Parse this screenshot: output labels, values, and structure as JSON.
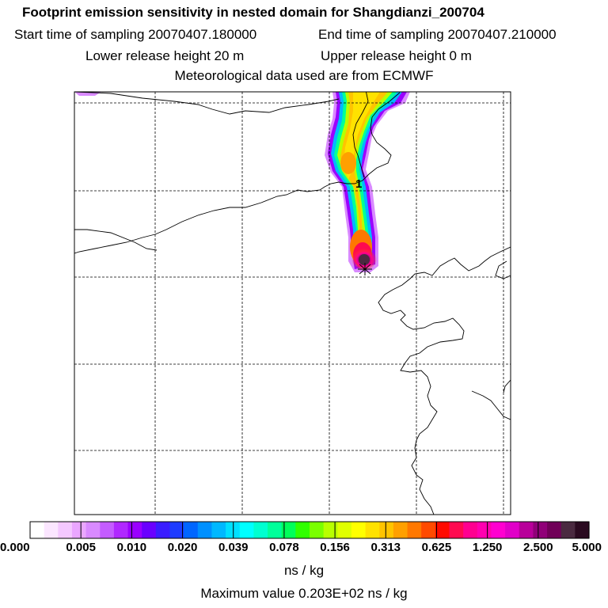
{
  "header": {
    "title": "Footprint emission sensitivity in nested domain for Shangdianzi_200704",
    "start_time": "Start time of sampling 20070407.180000",
    "end_time": "End time of sampling 20070407.210000",
    "lower_release": "Lower release height   20 m",
    "upper_release": "Upper release height    0 m",
    "met_data": "Meteorological data used are from ECMWF"
  },
  "map": {
    "release_marker": "1"
  },
  "colorbar": {
    "colors": [
      "#ffffff",
      "#fbe6ff",
      "#f4c8ff",
      "#eaa6ff",
      "#d98aff",
      "#c45cff",
      "#b028ff",
      "#9a00ff",
      "#6a00ff",
      "#3a1cff",
      "#1e3cff",
      "#0066ff",
      "#0090ff",
      "#00b8ff",
      "#00e0ff",
      "#00ffff",
      "#00ffd0",
      "#00ff9a",
      "#00ff5a",
      "#30ff00",
      "#7aff00",
      "#b8ff00",
      "#e0ff00",
      "#ffff00",
      "#ffe200",
      "#ffc400",
      "#ffa000",
      "#ff7800",
      "#ff4a00",
      "#ff0a00",
      "#ff0a50",
      "#ff0090",
      "#ff00b0",
      "#ff00d0",
      "#e000c8",
      "#b8009a",
      "#900078",
      "#700058",
      "#4a2a40",
      "#2a0a20"
    ],
    "tick_labels": [
      "0.000",
      "0.005",
      "0.010",
      "0.020",
      "0.039",
      "0.078",
      "0.156",
      "0.313",
      "0.625",
      "1.250",
      "2.500",
      "5.000"
    ],
    "units": "ns / kg",
    "max_value": "Maximum value  0.203E+02 ns / kg"
  }
}
